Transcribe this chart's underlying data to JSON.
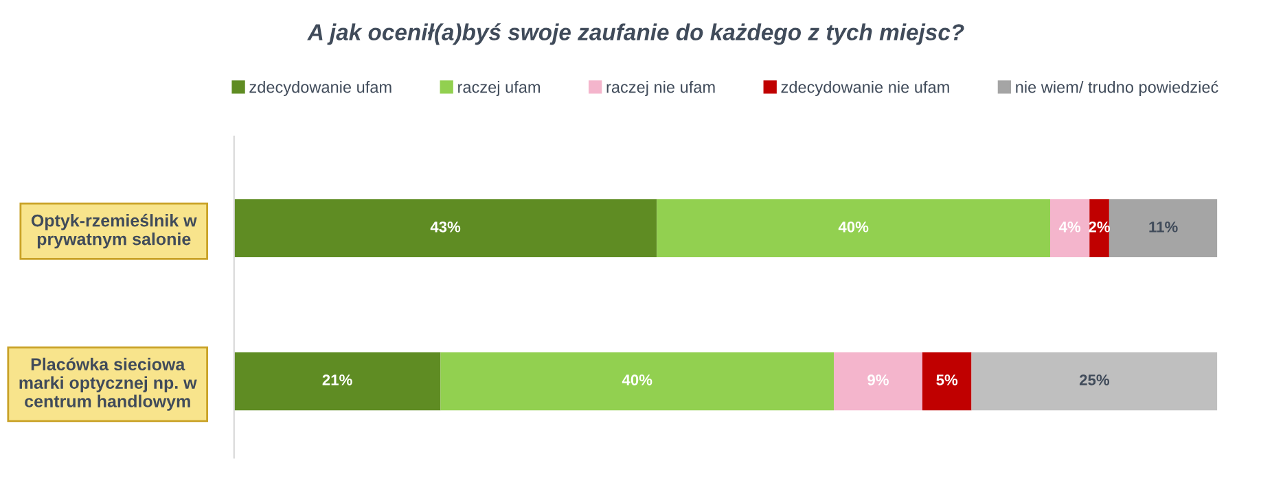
{
  "chart_data": {
    "type": "bar",
    "orientation": "horizontal",
    "stacked": true,
    "title": "A jak ocenił(a)byś swoje zaufanie do każdego z tych miejsc?",
    "categories": [
      "Optyk-rzemieślnik w prywatnym salonie",
      "Placówka sieciowa marki optycznej np. w centrum handlowym"
    ],
    "legend": "top",
    "grid": false,
    "tick_labels": "y",
    "series": [
      {
        "name": "zdecydowanie ufam",
        "color": "#5f8c23",
        "values": [
          43,
          21
        ],
        "value_labels": [
          "43%",
          "21%"
        ]
      },
      {
        "name": "raczej ufam",
        "color": "#92d050",
        "values": [
          40,
          40
        ],
        "value_labels": [
          "40%",
          "40%"
        ]
      },
      {
        "name": "raczej nie ufam",
        "color": "#f4b5cc",
        "values": [
          4,
          9
        ],
        "value_labels": [
          "4%",
          "9%"
        ]
      },
      {
        "name": "zdecydowanie nie ufam",
        "color": "#c00000",
        "values": [
          2,
          5
        ],
        "value_labels": [
          "2%",
          "5%"
        ]
      },
      {
        "name": "nie wiem/ trudno powiedzieć",
        "colors": [
          "#a5a5a5",
          "#bfbfbf"
        ],
        "values": [
          11,
          25
        ],
        "value_labels": [
          "11%",
          "25%"
        ]
      }
    ]
  }
}
